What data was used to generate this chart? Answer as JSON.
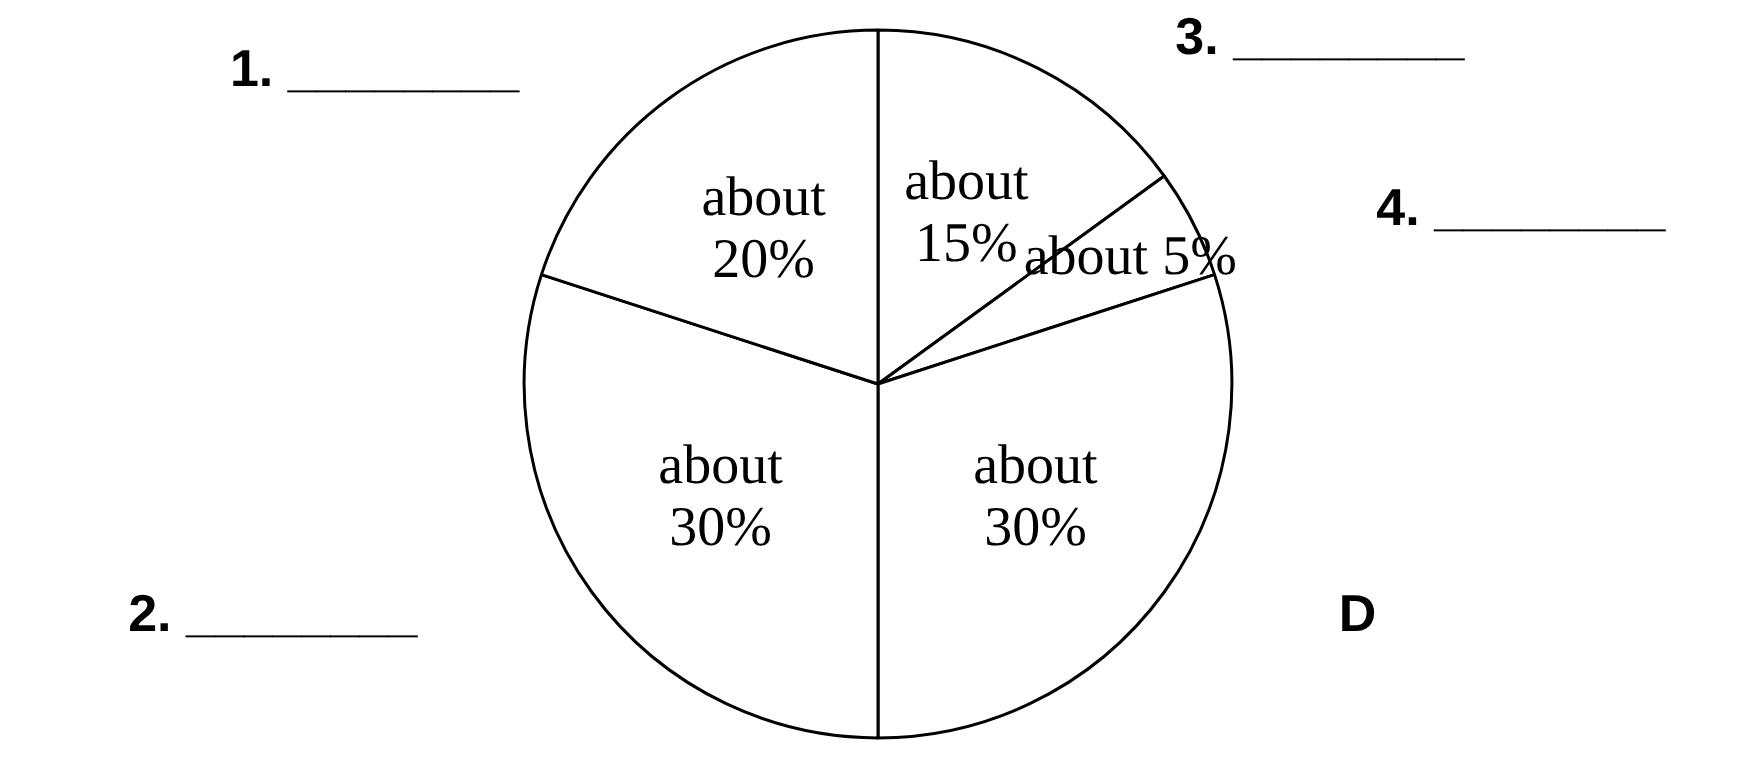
{
  "chart_data": {
    "type": "pie",
    "categories": [
      "3. ________",
      "4. ________",
      "D",
      "2. ________",
      "1. ________"
    ],
    "values": [
      15,
      5,
      30,
      30,
      20
    ],
    "colors": [
      "#ffffff",
      "#ffffff",
      "#ffffff",
      "#ffffff",
      "#ffffff"
    ],
    "value_labels": [
      "about 15%",
      "about 5%",
      "about 30%",
      "about 30%",
      "about 20%"
    ]
  }
}
